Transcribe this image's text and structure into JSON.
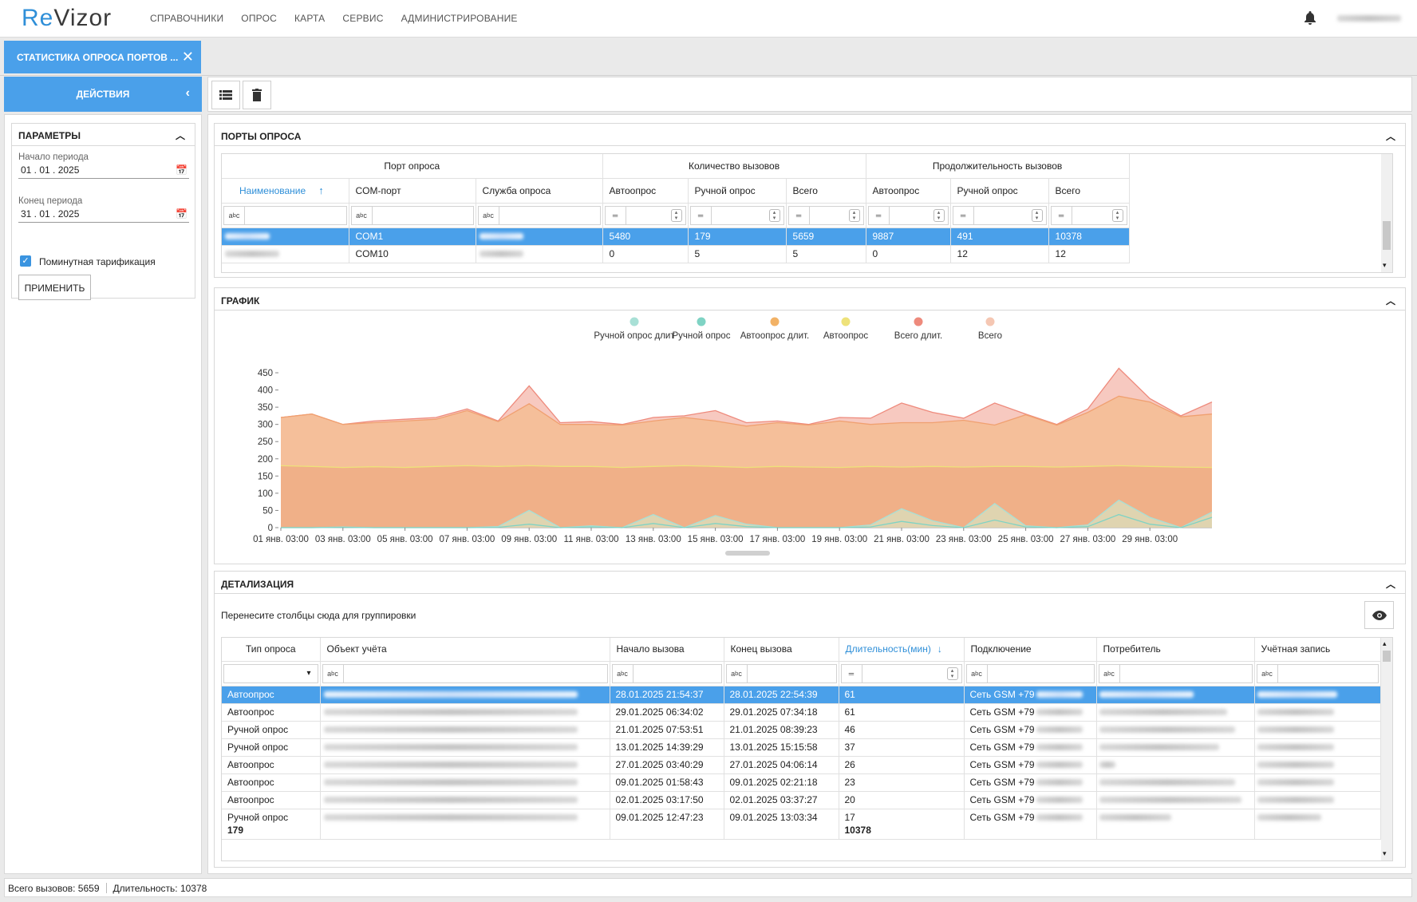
{
  "app": {
    "logo_re": "Re",
    "logo_rest": "Vizor"
  },
  "menu": [
    "Справочники",
    "Опрос",
    "Карта",
    "Сервис",
    "Администрирование"
  ],
  "tab": {
    "label": "СТАТИСТИКА ОПРОСА ПОРТОВ ...",
    "close": "✕"
  },
  "actions": {
    "label": "ДЕЙСТВИЯ"
  },
  "params": {
    "title": "ПАРАМЕТРЫ",
    "start_label": "Начало периода",
    "start_value": "01 . 01 . 2025",
    "end_label": "Конец периода",
    "end_value": "31 . 01 . 2025",
    "checkbox_label": "Поминутная тарификация",
    "checkbox_checked": true,
    "apply": "ПРИМЕНИТЬ"
  },
  "ports": {
    "title": "ПОРТЫ ОПРОСА",
    "group_headers": [
      "Порт опроса",
      "Количество вызовов",
      "Продолжительность вызовов"
    ],
    "columns": [
      "Наименование",
      "COM-порт",
      "Служба опроса",
      "Автоопрос",
      "Ручной опрос",
      "Всего",
      "Автоопрос",
      "Ручной опрос",
      "Всего"
    ],
    "rows": [
      {
        "com": "COM1",
        "v": [
          "5480",
          "179",
          "5659",
          "9887",
          "491",
          "10378"
        ],
        "selected": true
      },
      {
        "com": "COM10",
        "v": [
          "0",
          "5",
          "5",
          "0",
          "12",
          "12"
        ],
        "selected": false
      }
    ]
  },
  "graph": {
    "title": "ГРАФИК"
  },
  "chart_data": {
    "type": "area",
    "legend": [
      {
        "name": "Ручной опрос длит.",
        "color": "#a8e0d6"
      },
      {
        "name": "Ручной опрос",
        "color": "#7fd3c4"
      },
      {
        "name": "Автоопрос длит.",
        "color": "#f2b266"
      },
      {
        "name": "Автоопрос",
        "color": "#eee27a"
      },
      {
        "name": "Всего длит.",
        "color": "#ee8a7c"
      },
      {
        "name": "Всего",
        "color": "#f5c7b3"
      }
    ],
    "legend_display": [
      "Ручной опрос длит",
      "Ручной опрос",
      "Автоопрос длит.",
      "Автоопрос",
      "Всего длит.",
      "Всего"
    ],
    "x_ticks": [
      "01 янв. 03:00",
      "03 янв. 03:00",
      "05 янв. 03:00",
      "07 янв. 03:00",
      "09 янв. 03:00",
      "11 янв. 03:00",
      "13 янв. 03:00",
      "15 янв. 03:00",
      "17 янв. 03:00",
      "19 янв. 03:00",
      "21 янв. 03:00",
      "23 янв. 03:00",
      "25 янв. 03:00",
      "27 янв. 03:00",
      "29 янв. 03:00"
    ],
    "y_ticks": [
      0,
      50,
      100,
      150,
      200,
      250,
      300,
      350,
      400,
      450
    ],
    "ylim": [
      0,
      450
    ],
    "series": [
      {
        "name": "Всего длит.",
        "color": "#ee8a7c",
        "fill": "#f7c9c0",
        "values": [
          320,
          330,
          300,
          310,
          315,
          320,
          345,
          310,
          412,
          305,
          308,
          300,
          320,
          325,
          340,
          305,
          310,
          300,
          320,
          318,
          362,
          335,
          318,
          362,
          330,
          300,
          345,
          463,
          375,
          325,
          365
        ]
      },
      {
        "name": "Всего",
        "color": "#f0a070",
        "fill": "#f5bf9a",
        "values": [
          320,
          330,
          300,
          305,
          310,
          315,
          340,
          308,
          360,
          300,
          300,
          298,
          310,
          320,
          310,
          295,
          305,
          298,
          310,
          300,
          305,
          305,
          312,
          298,
          328,
          298,
          335,
          382,
          365,
          322,
          330
        ]
      },
      {
        "name": "Автоопрос",
        "color": "#eee27a",
        "fill": "#f0b088",
        "values": [
          180,
          178,
          175,
          177,
          175,
          178,
          180,
          178,
          180,
          178,
          178,
          175,
          178,
          180,
          178,
          175,
          178,
          176,
          175,
          178,
          176,
          178,
          176,
          178,
          178,
          176,
          178,
          180,
          178,
          176,
          175
        ]
      },
      {
        "name": "Ручной опрос длит.",
        "color": "#a8e0d6",
        "fill": "#dfd4b0",
        "values": [
          0,
          0,
          2,
          0,
          0,
          0,
          0,
          3,
          50,
          0,
          5,
          0,
          38,
          0,
          35,
          10,
          0,
          0,
          0,
          8,
          55,
          20,
          0,
          70,
          5,
          0,
          8,
          80,
          30,
          0,
          45
        ]
      },
      {
        "name": "Ручной опрос",
        "color": "#7fd3c4",
        "fill": "none",
        "values": [
          0,
          0,
          1,
          0,
          0,
          0,
          0,
          1,
          10,
          0,
          2,
          0,
          12,
          0,
          12,
          3,
          0,
          0,
          0,
          2,
          18,
          6,
          0,
          22,
          2,
          0,
          3,
          38,
          10,
          0,
          30
        ]
      }
    ]
  },
  "detail": {
    "title": "ДЕТАЛИЗАЦИЯ",
    "group_hint": "Перенесите столбцы сюда для группировки",
    "columns": [
      "Тип опроса",
      "Объект учёта",
      "Начало вызова",
      "Конец вызова",
      "Длительность(мин)",
      "Подключение",
      "Потребитель",
      "Учётная запись"
    ],
    "rows": [
      {
        "type": "Автоопрос",
        "start": "28.01.2025 21:54:37",
        "end": "28.01.2025 22:54:39",
        "dur": "61",
        "conn": "Сеть GSM +79",
        "selected": true
      },
      {
        "type": "Автоопрос",
        "start": "29.01.2025 06:34:02",
        "end": "29.01.2025 07:34:18",
        "dur": "61",
        "conn": "Сеть GSM +79",
        "selected": false
      },
      {
        "type": "Ручной опрос",
        "start": "21.01.2025 07:53:51",
        "end": "21.01.2025 08:39:23",
        "dur": "46",
        "conn": "Сеть GSM +79",
        "selected": false
      },
      {
        "type": "Ручной опрос",
        "start": "13.01.2025 14:39:29",
        "end": "13.01.2025 15:15:58",
        "dur": "37",
        "conn": "Сеть GSM +79",
        "selected": false
      },
      {
        "type": "Автоопрос",
        "start": "27.01.2025 03:40:29",
        "end": "27.01.2025 04:06:14",
        "dur": "26",
        "conn": "Сеть GSM +79",
        "selected": false
      },
      {
        "type": "Автоопрос",
        "start": "09.01.2025 01:58:43",
        "end": "09.01.2025 02:21:18",
        "dur": "23",
        "conn": "Сеть GSM +79",
        "selected": false
      },
      {
        "type": "Автоопрос",
        "start": "02.01.2025 03:17:50",
        "end": "02.01.2025 03:37:27",
        "dur": "20",
        "conn": "Сеть GSM +79",
        "selected": false
      },
      {
        "type": "Ручной опрос",
        "start": "09.01.2025 12:47:23",
        "end": "09.01.2025 13:03:34",
        "dur": "17",
        "conn": "Сеть GSM +79",
        "selected": false
      }
    ],
    "footer_count": "179",
    "footer_duration": "10378"
  },
  "status": {
    "calls": "Всего вызовов: 5659",
    "duration": "Длительность: 10378"
  }
}
